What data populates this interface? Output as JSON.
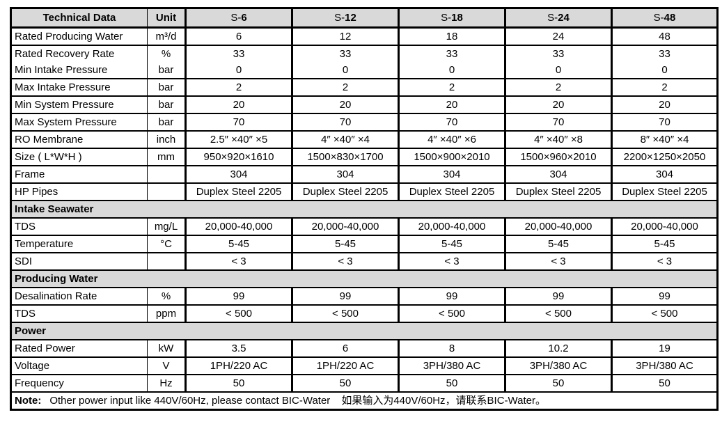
{
  "colors": {
    "header_bg": "#d9d9d9",
    "border": "#000000",
    "text": "#000000"
  },
  "table": {
    "header": {
      "label": "Technical Data",
      "unit": "Unit",
      "models": [
        {
          "prefix": "S-",
          "num": "6"
        },
        {
          "prefix": "S-",
          "num": "12"
        },
        {
          "prefix": "S-",
          "num": "18"
        },
        {
          "prefix": "S-",
          "num": "24"
        },
        {
          "prefix": "S-",
          "num": "48"
        }
      ]
    },
    "rows": [
      {
        "type": "data",
        "label": "Rated Producing Water",
        "unit": "m³/d",
        "values": [
          "6",
          "12",
          "18",
          "24",
          "48"
        ]
      },
      {
        "type": "data",
        "label": "Rated Recovery Rate",
        "unit": "%",
        "values": [
          "33",
          "33",
          "33",
          "33",
          "33"
        ],
        "merge_below": true
      },
      {
        "type": "data",
        "label": "Min Intake Pressure",
        "unit": "bar",
        "values": [
          "0",
          "0",
          "0",
          "0",
          "0"
        ]
      },
      {
        "type": "data",
        "label": "Max Intake Pressure",
        "unit": "bar",
        "values": [
          "2",
          "2",
          "2",
          "2",
          "2"
        ]
      },
      {
        "type": "data",
        "label": "Min System Pressure",
        "unit": "bar",
        "values": [
          "20",
          "20",
          "20",
          "20",
          "20"
        ]
      },
      {
        "type": "data",
        "label": "Max System Pressure",
        "unit": "bar",
        "values": [
          "70",
          "70",
          "70",
          "70",
          "70"
        ]
      },
      {
        "type": "data",
        "label": "RO Membrane",
        "unit": "inch",
        "values": [
          "2.5″  ×40″  ×5",
          "4″  ×40″  ×4",
          "4″  ×40″  ×6",
          "4″  ×40″  ×8",
          "8″  ×40″  ×4"
        ]
      },
      {
        "type": "data",
        "label": "Size ( L*W*H )",
        "unit": "mm",
        "values": [
          "950×920×1610",
          "1500×830×1700",
          "1500×900×2010",
          "1500×960×2010",
          "2200×1250×2050"
        ]
      },
      {
        "type": "data",
        "label": "Frame",
        "unit": "",
        "values": [
          "304",
          "304",
          "304",
          "304",
          "304"
        ]
      },
      {
        "type": "data",
        "label": "HP Pipes",
        "unit": "",
        "values": [
          "Duplex Steel 2205",
          "Duplex Steel 2205",
          "Duplex Steel 2205",
          "Duplex Steel 2205",
          "Duplex Steel 2205"
        ]
      },
      {
        "type": "section",
        "label": "Intake Seawater"
      },
      {
        "type": "data",
        "label": "TDS",
        "unit": "mg/L",
        "values": [
          "20,000-40,000",
          "20,000-40,000",
          "20,000-40,000",
          "20,000-40,000",
          "20,000-40,000"
        ]
      },
      {
        "type": "data",
        "label": "Temperature",
        "unit": "°C",
        "values": [
          "5-45",
          "5-45",
          "5-45",
          "5-45",
          "5-45"
        ]
      },
      {
        "type": "data",
        "label": "SDI",
        "unit": "",
        "values": [
          "< 3",
          "< 3",
          "< 3",
          "< 3",
          "< 3"
        ]
      },
      {
        "type": "section",
        "label": "Producing Water"
      },
      {
        "type": "data",
        "label": "Desalination Rate",
        "unit": "%",
        "values": [
          "99",
          "99",
          "99",
          "99",
          "99"
        ]
      },
      {
        "type": "data",
        "label": "TDS",
        "unit": "ppm",
        "values": [
          "< 500",
          "< 500",
          "< 500",
          "< 500",
          "< 500"
        ]
      },
      {
        "type": "section",
        "label": "Power"
      },
      {
        "type": "data",
        "label": "Rated Power",
        "unit": "kW",
        "values": [
          "3.5",
          "6",
          "8",
          "10.2",
          "19"
        ]
      },
      {
        "type": "data",
        "label": "Voltage",
        "unit": "V",
        "values": [
          "1PH/220 AC",
          "1PH/220 AC",
          "3PH/380 AC",
          "3PH/380 AC",
          "3PH/380 AC"
        ]
      },
      {
        "type": "data",
        "label": "Frequency",
        "unit": "Hz",
        "values": [
          "50",
          "50",
          "50",
          "50",
          "50"
        ]
      }
    ]
  },
  "note": {
    "label": "Note:",
    "text_en": "Other power input like 440V/60Hz, please contact BIC-Water",
    "text_cn": "如果输入为440V/60Hz，请联系BIC-Water。"
  }
}
